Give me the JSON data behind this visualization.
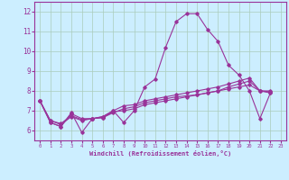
{
  "xlabel": "Windchill (Refroidissement éolien,°C)",
  "bg_color": "#cceeff",
  "line_color": "#993399",
  "grid_color": "#aaccbb",
  "xlim": [
    -0.5,
    23.5
  ],
  "ylim": [
    5.5,
    12.5
  ],
  "xticks": [
    0,
    1,
    2,
    3,
    4,
    5,
    6,
    7,
    8,
    9,
    10,
    11,
    12,
    13,
    14,
    15,
    16,
    17,
    18,
    19,
    20,
    21,
    22,
    23
  ],
  "yticks": [
    6,
    7,
    8,
    9,
    10,
    11,
    12
  ],
  "series": [
    [
      7.5,
      6.4,
      6.2,
      6.9,
      5.9,
      6.6,
      6.7,
      7.0,
      6.4,
      7.0,
      8.2,
      8.6,
      10.2,
      11.5,
      11.9,
      11.9,
      11.1,
      10.5,
      9.3,
      8.8,
      8.0,
      6.6,
      7.9
    ],
    [
      7.5,
      6.4,
      6.2,
      6.85,
      6.6,
      6.6,
      6.7,
      7.0,
      7.25,
      7.3,
      7.5,
      7.6,
      7.7,
      7.8,
      7.9,
      8.0,
      8.1,
      8.2,
      8.35,
      8.5,
      8.65,
      8.0,
      8.0
    ],
    [
      7.5,
      6.5,
      6.3,
      6.7,
      6.5,
      6.6,
      6.65,
      6.95,
      7.0,
      7.1,
      7.3,
      7.4,
      7.5,
      7.6,
      7.7,
      7.8,
      7.9,
      8.0,
      8.1,
      8.2,
      8.3,
      8.0,
      7.9
    ],
    [
      7.5,
      6.5,
      6.35,
      6.75,
      6.55,
      6.6,
      6.65,
      6.9,
      7.1,
      7.2,
      7.4,
      7.5,
      7.6,
      7.7,
      7.75,
      7.8,
      7.9,
      8.0,
      8.2,
      8.35,
      8.5,
      8.0,
      7.95
    ]
  ],
  "x_start": 0
}
